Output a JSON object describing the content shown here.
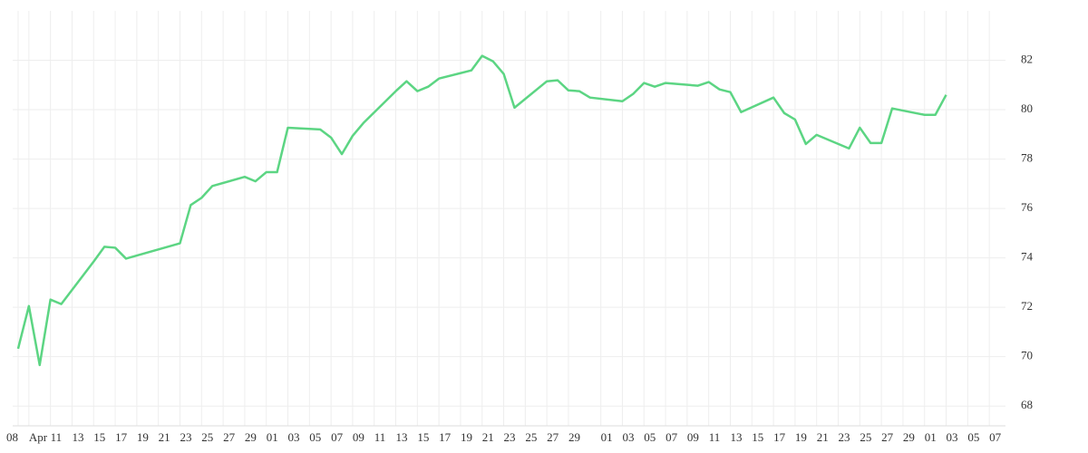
{
  "chart_data": {
    "type": "line",
    "x": [
      8,
      9,
      10,
      11,
      12,
      15,
      16,
      17,
      18,
      23,
      24,
      25,
      26,
      29,
      30,
      31,
      32,
      33,
      36,
      37,
      38,
      39,
      40,
      43,
      44,
      45,
      46,
      47,
      50,
      51,
      52,
      53,
      54,
      57,
      58,
      59,
      60,
      61,
      64,
      65,
      66,
      67,
      68,
      71,
      72,
      73,
      74,
      75,
      78,
      79,
      80,
      81,
      82,
      85,
      86,
      87,
      88,
      89,
      92,
      93,
      94
    ],
    "series": [
      {
        "color": "#5cd583",
        "values": [
          70.32,
          72.05,
          69.66,
          72.31,
          72.13,
          73.85,
          74.45,
          74.41,
          73.97,
          74.59,
          76.14,
          76.43,
          76.91,
          77.28,
          77.1,
          77.47,
          77.47,
          79.27,
          79.2,
          78.87,
          78.2,
          78.94,
          79.46,
          80.75,
          81.15,
          80.75,
          80.93,
          81.26,
          81.59,
          82.18,
          81.96,
          81.45,
          80.08,
          81.15,
          81.19,
          80.78,
          80.75,
          80.49,
          80.34,
          80.64,
          81.08,
          80.93,
          81.08,
          80.97,
          81.12,
          80.82,
          80.71,
          79.9,
          80.49,
          79.86,
          79.6,
          78.61,
          78.98,
          78.43,
          79.27,
          78.65,
          78.65,
          80.05,
          79.79,
          79.79,
          80.6
        ]
      }
    ],
    "xlim": [
      7.5,
      99.5
    ],
    "xticks": [
      {
        "value": 8,
        "label": "08"
      },
      {
        "value": 9,
        "label": "Apr"
      },
      11,
      13,
      15,
      17,
      19,
      21,
      23,
      25,
      27,
      29,
      {
        "value": 31,
        "label": "01"
      },
      {
        "value": 33,
        "label": "03"
      },
      {
        "value": 35,
        "label": "05"
      },
      {
        "value": 37,
        "label": "07"
      },
      {
        "value": 39,
        "label": "09"
      },
      {
        "value": 41,
        "label": "11"
      },
      {
        "value": 43,
        "label": "13"
      },
      {
        "value": 45,
        "label": "15"
      },
      {
        "value": 47,
        "label": "17"
      },
      {
        "value": 49,
        "label": "19"
      },
      {
        "value": 51,
        "label": "21"
      },
      {
        "value": 53,
        "label": "23"
      },
      {
        "value": 55,
        "label": "25"
      },
      {
        "value": 57,
        "label": "27"
      },
      {
        "value": 59,
        "label": "29"
      },
      {
        "value": 62,
        "label": "01"
      },
      {
        "value": 64,
        "label": "03"
      },
      {
        "value": 66,
        "label": "05"
      },
      {
        "value": 68,
        "label": "07"
      },
      {
        "value": 70,
        "label": "09"
      },
      {
        "value": 72,
        "label": "11"
      },
      {
        "value": 74,
        "label": "13"
      },
      {
        "value": 76,
        "label": "15"
      },
      {
        "value": 78,
        "label": "17"
      },
      {
        "value": 80,
        "label": "19"
      },
      {
        "value": 82,
        "label": "21"
      },
      {
        "value": 84,
        "label": "23"
      },
      {
        "value": 86,
        "label": "25"
      },
      {
        "value": 88,
        "label": "27"
      },
      {
        "value": 90,
        "label": "29"
      },
      {
        "value": 92,
        "label": "01"
      },
      {
        "value": 94,
        "label": "03"
      },
      {
        "value": 96,
        "label": "05"
      },
      {
        "value": 98,
        "label": "07"
      }
    ],
    "ylim": [
      67.2,
      84
    ],
    "yticks": [
      68,
      70,
      72,
      74,
      76,
      78,
      80,
      82
    ],
    "grid": true
  }
}
